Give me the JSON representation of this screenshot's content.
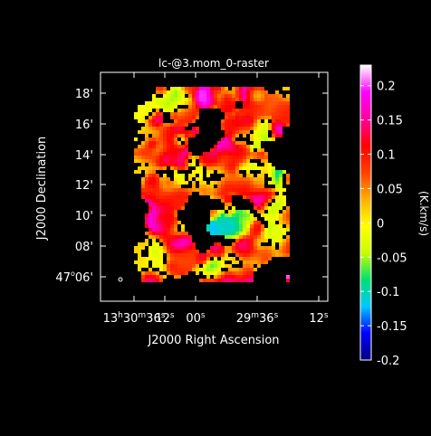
{
  "chart_data": {
    "type": "heatmap",
    "title": "lc-@3.mom_0-raster",
    "xlabel": "J2000 Right Ascension",
    "ylabel": "J2000 Declination",
    "x_ticks": [
      {
        "label": "13h30m36s",
        "main": "13",
        "sup1": "h",
        "mid": "30",
        "sup2": "m",
        "end": "36",
        "sup3": "s"
      },
      {
        "label": "12s",
        "main": "12",
        "sup1": "s"
      },
      {
        "label": "00s",
        "main": "00",
        "sup1": "s"
      },
      {
        "label": "29m36s",
        "main": "29",
        "sup1": "m",
        "mid": "36",
        "sup2": "s"
      },
      {
        "label": "12s",
        "main": "12",
        "sup1": "s"
      }
    ],
    "y_ticks": [
      {
        "label": "18'"
      },
      {
        "label": "16'"
      },
      {
        "label": "14'"
      },
      {
        "label": "12'"
      },
      {
        "label": "10'"
      },
      {
        "label": "08'"
      },
      {
        "label": "47°06'",
        "main": "47",
        "sup1": "o",
        "end": "06'"
      }
    ],
    "colorbar": {
      "label": "(K.km/s)",
      "range": [
        -0.2,
        0.23
      ],
      "ticks": [
        "0.2",
        "0.15",
        "0.1",
        "0.05",
        "0",
        "-0.05",
        "-0.1",
        "-0.15",
        "-0.2"
      ],
      "tick_values": [
        0.2,
        0.15,
        0.1,
        0.05,
        0,
        -0.05,
        -0.1,
        -0.15,
        -0.2
      ],
      "colormap": [
        "#000080",
        "#0000ff",
        "#00c8ff",
        "#00e070",
        "#c8ff00",
        "#ffff00",
        "#ffb000",
        "#ff4000",
        "#ff0000",
        "#ff00a0",
        "#ff00ff",
        "#ffffff"
      ]
    }
  }
}
